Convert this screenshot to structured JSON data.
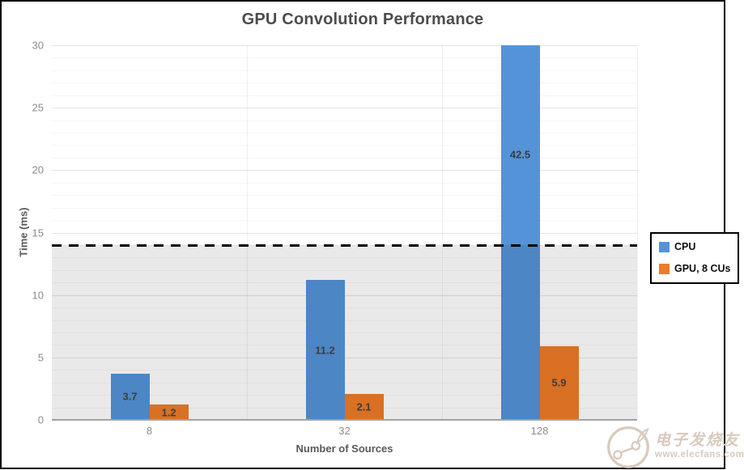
{
  "chart_data": {
    "type": "bar",
    "title": "GPU Convolution Performance",
    "xlabel": "Number of Sources",
    "ylabel": "Time (ms)",
    "categories": [
      "8",
      "32",
      "128"
    ],
    "series": [
      {
        "name": "CPU",
        "color": "#5493d8",
        "values": [
          3.7,
          11.2,
          42.5
        ]
      },
      {
        "name": "GPU, 8 CUs",
        "color": "#ee7b27",
        "values": [
          1.2,
          2.1,
          5.9
        ]
      }
    ],
    "ylim": [
      0,
      30
    ],
    "yticks": [
      0,
      5,
      10,
      15,
      20,
      25,
      30
    ],
    "minor_grid_step": 1,
    "grid": true,
    "bar_labels": true,
    "legend_position": "right-middle",
    "reference_line": {
      "value": 14,
      "style": "dashed",
      "color": "#000000"
    },
    "shaded_band": {
      "from": 0,
      "to": 14,
      "note": "area below reference line shaded gray"
    }
  },
  "colors": {
    "title_text": "#4c4c4c",
    "axis_title_text": "#595959",
    "tick_text": "#8b8b8b",
    "bar_label_text": "#3d3d3d",
    "legend_border": "#000000",
    "watermark": "#d9cabd"
  },
  "watermark": {
    "brand": "电子发烧友",
    "url": "www.elecfans.com"
  }
}
